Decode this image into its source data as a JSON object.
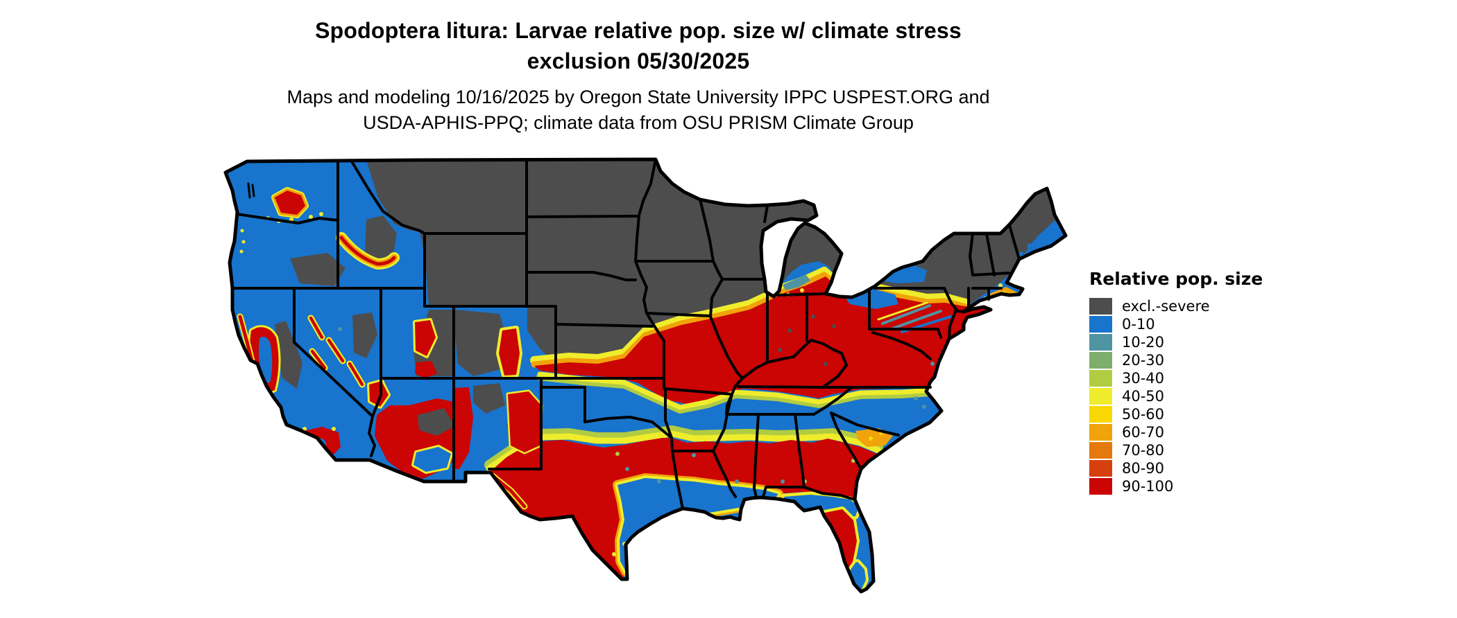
{
  "title": {
    "line1": "Spodoptera litura: Larvae relative pop. size w/ climate stress",
    "line2": "exclusion 05/30/2025"
  },
  "subtitle": {
    "line1": "Maps and modeling 10/16/2025 by Oregon State University IPPC USPEST.ORG and",
    "line2": "USDA-APHIS-PPQ; climate data from OSU PRISM Climate Group"
  },
  "legend": {
    "title": "Relative pop. size",
    "items": [
      {
        "label": "excl.-severe",
        "color": "#4D4D4D",
        "var": "excl"
      },
      {
        "label": "0-10",
        "color": "#1874CD",
        "var": "c010"
      },
      {
        "label": "10-20",
        "color": "#4F94A3",
        "var": "c1020"
      },
      {
        "label": "20-30",
        "color": "#7EAE6C",
        "var": "c2030"
      },
      {
        "label": "30-40",
        "color": "#B2CC42",
        "var": "c3040"
      },
      {
        "label": "40-50",
        "color": "#EFEC2C",
        "var": "c4050"
      },
      {
        "label": "50-60",
        "color": "#F8D703",
        "var": "c5060"
      },
      {
        "label": "60-70",
        "color": "#F0A30A",
        "var": "c6070"
      },
      {
        "label": "70-80",
        "color": "#E5790D",
        "var": "c7080"
      },
      {
        "label": "80-90",
        "color": "#D6400F",
        "var": "c8090"
      },
      {
        "label": "90-100",
        "color": "#CB0404",
        "var": "c90100"
      }
    ]
  },
  "map": {
    "region": "Continental United States",
    "kind": "raster choropleth with state borders",
    "visible_patterns": {
      "excluded_severe": "northern tier: Montana, Wyoming, Dakotas, Nebraska, Minnesota, Iowa, Wisconsin, upper Michigan, northern Missouri/Illinois, Adirondacks and northern New England, Rockies, Utah, interior basins",
      "high_90_100": "band from Kansas/Missouri across Illinois, Indiana, Ohio, Kentucky, Virginia and Mid-Atlantic; central Texas to Georgia and SE coastal plain; central Florida; south Texas; western valleys",
      "low_0_10": "Pacific Northwest west side, Great Basin, band across Oklahoma/Arkansas/Tennessee/North Carolina, Gulf coastal strip, north Florida and south Florida tip, southern Michigan"
    }
  }
}
